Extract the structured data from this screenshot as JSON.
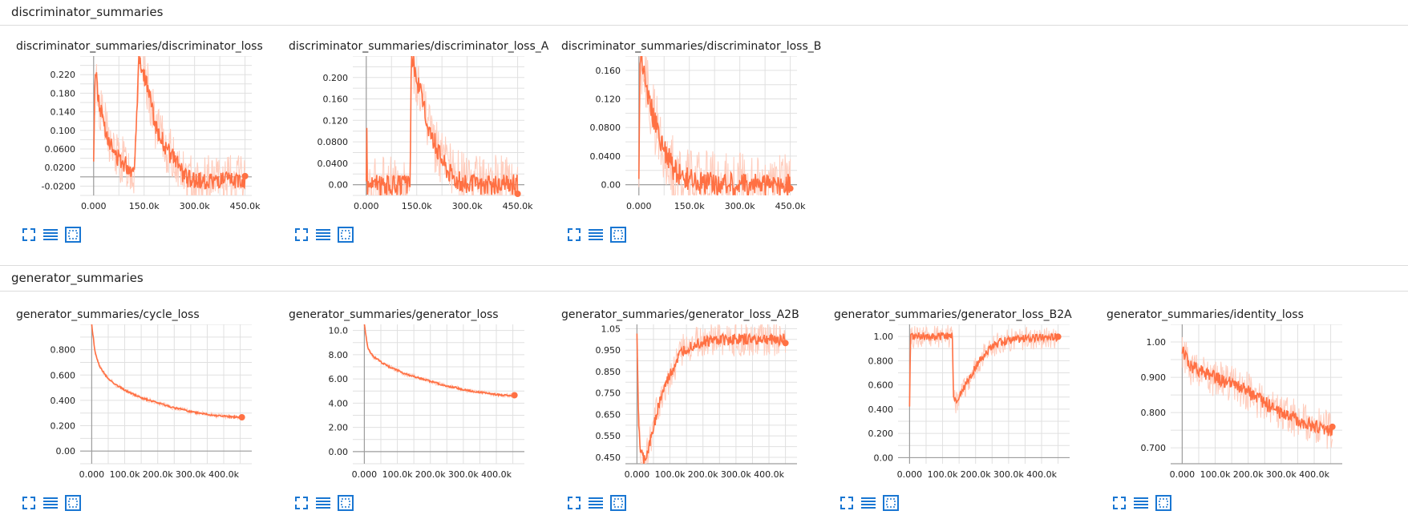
{
  "colors": {
    "series": "#ff7043",
    "series_light": "#ffccbc",
    "grid": "#e0e0e0",
    "axis": "#9e9e9e",
    "tool": "#1976d2"
  },
  "sections": [
    {
      "title": "discriminator_summaries"
    },
    {
      "title": "generator_summaries"
    }
  ],
  "tool_icons": [
    "expand-icon",
    "log-scale-lines-icon",
    "fit-domain-icon"
  ],
  "chart_data": [
    {
      "type": "line",
      "title": "discriminator_summaries/discriminator_loss",
      "xlim": [
        -40000,
        470000
      ],
      "ylim": [
        -0.04,
        0.26
      ],
      "clip_top": 0.245,
      "xticks": [
        0,
        150000,
        300000,
        450000
      ],
      "xtick_labels": [
        "0.000",
        "150.0k",
        "300.0k",
        "450.0k"
      ],
      "yticks": [
        -0.02,
        0.02,
        0.06,
        0.1,
        0.14,
        0.18,
        0.22
      ],
      "ytick_labels": [
        "-0.0200",
        "0.0200",
        "0.0600",
        "0.100",
        "0.140",
        "0.180",
        "0.220"
      ],
      "series": [
        {
          "x": [
            0,
            5000,
            15000,
            30000,
            45000,
            60000,
            75000,
            90000,
            105000,
            120000,
            135000,
            150000,
            165000,
            180000,
            195000,
            210000,
            225000,
            240000,
            255000,
            270000,
            285000,
            300000,
            330000,
            360000,
            390000,
            420000,
            450000
          ],
          "y": [
            0.03,
            0.24,
            0.16,
            0.12,
            0.08,
            0.05,
            0.04,
            0.03,
            0.02,
            0.01,
            0.26,
            0.22,
            0.18,
            0.12,
            0.09,
            0.07,
            0.05,
            0.04,
            0.02,
            0.0,
            -0.005,
            -0.008,
            -0.009,
            -0.009,
            -0.009,
            -0.009,
            -0.009
          ],
          "noise": 0.035
        }
      ]
    },
    {
      "type": "line",
      "title": "discriminator_summaries/discriminator_loss_A",
      "xlim": [
        -40000,
        470000
      ],
      "ylim": [
        -0.02,
        0.24
      ],
      "clip_top": 0.23,
      "xticks": [
        0,
        150000,
        300000,
        450000
      ],
      "xtick_labels": [
        "0.000",
        "150.0k",
        "300.0k",
        "450.0k"
      ],
      "yticks": [
        0.0,
        0.04,
        0.08,
        0.12,
        0.16,
        0.2
      ],
      "ytick_labels": [
        "0.00",
        "0.0400",
        "0.0800",
        "0.120",
        "0.160",
        "0.200"
      ],
      "series": [
        {
          "x": [
            0,
            1500,
            3000,
            6000,
            50000,
            100000,
            130000,
            134000,
            137000,
            150000,
            165000,
            180000,
            195000,
            210000,
            225000,
            240000,
            255000,
            270000,
            285000,
            300000,
            330000,
            360000,
            400000,
            450000
          ],
          "y": [
            0.0,
            0.13,
            0.0,
            0.0,
            0.0,
            0.0,
            0.0,
            0.24,
            0.23,
            0.2,
            0.16,
            0.12,
            0.09,
            0.07,
            0.05,
            0.03,
            0.02,
            0.01,
            0.005,
            0.002,
            0.001,
            0.0,
            0.0,
            0.0
          ],
          "noise": 0.035
        }
      ]
    },
    {
      "type": "line",
      "title": "discriminator_summaries/discriminator_loss_B",
      "xlim": [
        -40000,
        470000
      ],
      "ylim": [
        -0.015,
        0.18
      ],
      "clip_top": 0.175,
      "xticks": [
        0,
        150000,
        300000,
        450000
      ],
      "xtick_labels": [
        "0.000",
        "150.0k",
        "300.0k",
        "450.0k"
      ],
      "yticks": [
        0.0,
        0.04,
        0.08,
        0.12,
        0.16
      ],
      "ytick_labels": [
        "0.00",
        "0.0400",
        "0.0800",
        "0.120",
        "0.160"
      ],
      "series": [
        {
          "x": [
            0,
            3000,
            6000,
            15000,
            30000,
            45000,
            60000,
            75000,
            90000,
            105000,
            120000,
            135000,
            150000,
            165000,
            180000,
            200000,
            250000,
            300000,
            350000,
            400000,
            450000
          ],
          "y": [
            0.0,
            0.18,
            0.18,
            0.16,
            0.12,
            0.09,
            0.07,
            0.05,
            0.035,
            0.02,
            0.015,
            0.01,
            0.006,
            0.004,
            0.003,
            0.002,
            0.001,
            0.0005,
            0.0,
            0.0,
            0.0
          ],
          "noise": 0.03
        }
      ]
    },
    {
      "type": "line",
      "title": "generator_summaries/cycle_loss",
      "xlim": [
        -35000,
        485000
      ],
      "ylim": [
        -0.1,
        1.0
      ],
      "clip_top": 0.98,
      "xticks": [
        0,
        100000,
        200000,
        300000,
        400000
      ],
      "xtick_labels": [
        "0.000",
        "100.0k",
        "200.0k",
        "300.0k",
        "400.0k"
      ],
      "yticks": [
        0.0,
        0.2,
        0.4,
        0.6,
        0.8
      ],
      "ytick_labels": [
        "0.00",
        "0.200",
        "0.400",
        "0.600",
        "0.800"
      ],
      "series": [
        {
          "x": [
            0,
            10000,
            25000,
            50000,
            75000,
            100000,
            125000,
            150000,
            175000,
            200000,
            225000,
            250000,
            275000,
            300000,
            325000,
            350000,
            375000,
            400000,
            425000,
            455000
          ],
          "y": [
            1.0,
            0.78,
            0.66,
            0.57,
            0.52,
            0.48,
            0.45,
            0.42,
            0.4,
            0.38,
            0.36,
            0.34,
            0.33,
            0.31,
            0.3,
            0.29,
            0.28,
            0.275,
            0.27,
            0.265
          ],
          "noise": 0.012
        }
      ]
    },
    {
      "type": "line",
      "title": "generator_summaries/generator_loss",
      "xlim": [
        -35000,
        485000
      ],
      "ylim": [
        -1.0,
        10.5
      ],
      "clip_top": 10.3,
      "xticks": [
        0,
        100000,
        200000,
        300000,
        400000
      ],
      "xtick_labels": [
        "0.000",
        "100.0k",
        "200.0k",
        "300.0k",
        "400.0k"
      ],
      "yticks": [
        0,
        2,
        4,
        6,
        8,
        10
      ],
      "ytick_labels": [
        "0.00",
        "2.00",
        "4.00",
        "6.00",
        "8.00",
        "10.0"
      ],
      "series": [
        {
          "x": [
            0,
            10000,
            25000,
            50000,
            75000,
            100000,
            125000,
            150000,
            175000,
            200000,
            225000,
            250000,
            275000,
            300000,
            325000,
            350000,
            375000,
            400000,
            425000,
            455000
          ],
          "y": [
            10.5,
            8.6,
            7.9,
            7.4,
            7.0,
            6.7,
            6.4,
            6.2,
            6.0,
            5.8,
            5.6,
            5.4,
            5.3,
            5.1,
            5.0,
            4.9,
            4.8,
            4.7,
            4.65,
            4.6
          ],
          "noise": 0.12
        }
      ]
    },
    {
      "type": "line",
      "title": "generator_summaries/generator_loss_A2B",
      "xlim": [
        -35000,
        485000
      ],
      "ylim": [
        0.42,
        1.07
      ],
      "clip_top": 1.065,
      "xticks": [
        0,
        100000,
        200000,
        300000,
        400000
      ],
      "xtick_labels": [
        "0.000",
        "100.0k",
        "200.0k",
        "300.0k",
        "400.0k"
      ],
      "yticks": [
        0.45,
        0.55,
        0.65,
        0.75,
        0.85,
        0.95,
        1.05
      ],
      "ytick_labels": [
        "0.450",
        "0.550",
        "0.650",
        "0.750",
        "0.850",
        "0.950",
        "1.05"
      ],
      "series": [
        {
          "x": [
            0,
            5000,
            10000,
            20000,
            30000,
            45000,
            60000,
            75000,
            90000,
            105000,
            120000,
            135000,
            150000,
            175000,
            200000,
            225000,
            250000,
            300000,
            350000,
            400000,
            450000
          ],
          "y": [
            1.0,
            0.62,
            0.48,
            0.44,
            0.46,
            0.55,
            0.66,
            0.74,
            0.8,
            0.85,
            0.9,
            0.94,
            0.96,
            0.98,
            0.99,
            0.995,
            1.0,
            1.0,
            1.0,
            1.0,
            1.0
          ],
          "noise": 0.05
        }
      ]
    },
    {
      "type": "line",
      "title": "generator_summaries/generator_loss_B2A",
      "xlim": [
        -35000,
        485000
      ],
      "ylim": [
        -0.05,
        1.1
      ],
      "clip_top": 1.08,
      "xticks": [
        0,
        100000,
        200000,
        300000,
        400000
      ],
      "xtick_labels": [
        "0.000",
        "100.0k",
        "200.0k",
        "300.0k",
        "400.0k"
      ],
      "yticks": [
        0.0,
        0.2,
        0.4,
        0.6,
        0.8,
        1.0
      ],
      "ytick_labels": [
        "0.00",
        "0.200",
        "0.400",
        "0.600",
        "0.800",
        "1.00"
      ],
      "series": [
        {
          "x": [
            0,
            3000,
            6000,
            50000,
            100000,
            130000,
            133000,
            140000,
            160000,
            180000,
            200000,
            220000,
            240000,
            260000,
            280000,
            300000,
            350000,
            400000,
            450000
          ],
          "y": [
            0.45,
            1.0,
            1.0,
            1.0,
            1.0,
            1.0,
            0.5,
            0.45,
            0.55,
            0.65,
            0.75,
            0.83,
            0.89,
            0.93,
            0.96,
            0.97,
            0.985,
            0.99,
            1.0
          ],
          "noise": 0.06
        }
      ]
    },
    {
      "type": "line",
      "title": "generator_summaries/identity_loss",
      "xlim": [
        -35000,
        485000
      ],
      "ylim": [
        0.655,
        1.05
      ],
      "clip_top": 1.045,
      "xticks": [
        0,
        100000,
        200000,
        300000,
        400000
      ],
      "xtick_labels": [
        "0.000",
        "100.0k",
        "200.0k",
        "300.0k",
        "400.0k"
      ],
      "yticks": [
        0.7,
        0.8,
        0.9,
        1.0
      ],
      "ytick_labels": [
        "0.700",
        "0.800",
        "0.900",
        "1.00"
      ],
      "series": [
        {
          "x": [
            0,
            25000,
            50000,
            75000,
            100000,
            125000,
            150000,
            175000,
            200000,
            225000,
            250000,
            275000,
            300000,
            325000,
            350000,
            375000,
            400000,
            425000,
            455000
          ],
          "y": [
            0.98,
            0.93,
            0.92,
            0.91,
            0.9,
            0.89,
            0.88,
            0.87,
            0.86,
            0.84,
            0.83,
            0.81,
            0.8,
            0.79,
            0.78,
            0.77,
            0.76,
            0.755,
            0.75
          ],
          "noise": 0.035
        }
      ]
    }
  ]
}
